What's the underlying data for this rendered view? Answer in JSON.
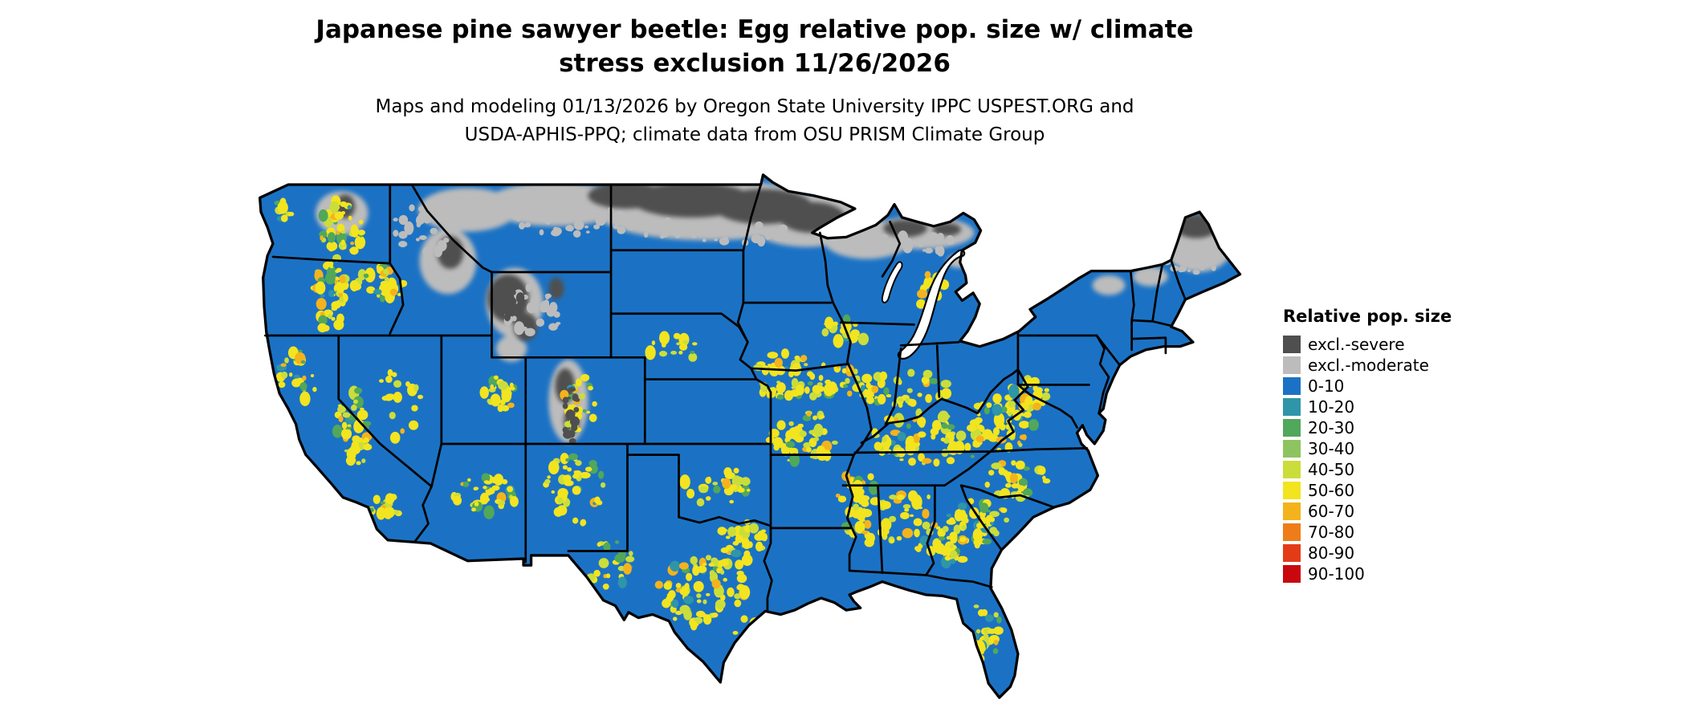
{
  "header": {
    "title_line1": "Japanese pine sawyer beetle: Egg relative pop. size w/ climate",
    "title_line2": "stress exclusion 11/26/2026",
    "subtitle_line1": "Maps and modeling 01/13/2026 by Oregon State University IPPC USPEST.ORG and",
    "subtitle_line2": "USDA-APHIS-PPQ; climate data from OSU PRISM Climate Group"
  },
  "legend": {
    "title": "Relative pop. size",
    "items": [
      {
        "label": "excl.-severe",
        "color": "#4f4f4f"
      },
      {
        "label": "excl.-moderate",
        "color": "#bcbcbc"
      },
      {
        "label": "0-10",
        "color": "#1b72c4"
      },
      {
        "label": "10-20",
        "color": "#2f95a8"
      },
      {
        "label": "20-30",
        "color": "#51a75a"
      },
      {
        "label": "30-40",
        "color": "#8ec45f"
      },
      {
        "label": "40-50",
        "color": "#cbdd3a"
      },
      {
        "label": "50-60",
        "color": "#f2e41f"
      },
      {
        "label": "60-70",
        "color": "#f4b31c"
      },
      {
        "label": "70-80",
        "color": "#ee7d19"
      },
      {
        "label": "80-90",
        "color": "#e33b18"
      },
      {
        "label": "90-100",
        "color": "#c8080c"
      }
    ]
  },
  "map": {
    "base_color": "#1b72c4",
    "excl_severe_color": "#4f4f4f",
    "excl_moderate_color": "#bcbcbc",
    "water_color": "#ffffff",
    "border_color": "#000000"
  }
}
